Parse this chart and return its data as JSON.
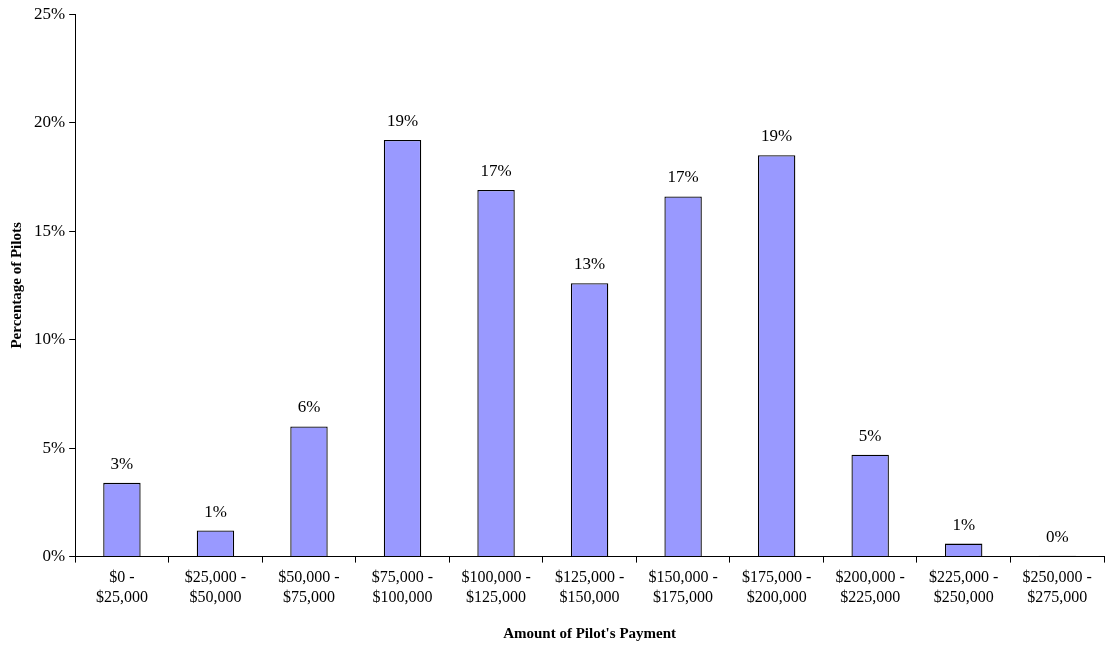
{
  "chart_data": {
    "type": "bar",
    "xlabel": "Amount of Pilot's Payment",
    "ylabel": "Percentage of Pilots",
    "categories": [
      "$0 - $25,000",
      "$25,000 - $50,000",
      "$50,000 - $75,000",
      "$75,000 - $100,000",
      "$100,000 - $125,000",
      "$125,000 - $150,000",
      "$150,000 - $175,000",
      "$175,000 - $200,000",
      "$200,000 - $225,000",
      "$225,000 - $250,000",
      "$250,000 - $275,000"
    ],
    "values": [
      3.4,
      1.2,
      6.0,
      19.2,
      16.9,
      12.6,
      16.6,
      18.5,
      4.7,
      0.6,
      0.04
    ],
    "value_labels": [
      "3%",
      "1%",
      "6%",
      "19%",
      "17%",
      "13%",
      "17%",
      "19%",
      "5%",
      "1%",
      "0%"
    ],
    "color": "#9999ff",
    "ylim": [
      0,
      25
    ],
    "yticks": [
      {
        "value": 0,
        "label": "0%"
      },
      {
        "value": 5,
        "label": "5%"
      },
      {
        "value": 10,
        "label": "10%"
      },
      {
        "value": 15,
        "label": "15%"
      },
      {
        "value": 20,
        "label": "20%"
      },
      {
        "value": 25,
        "label": "25%"
      }
    ],
    "grid": false,
    "legend": false
  }
}
